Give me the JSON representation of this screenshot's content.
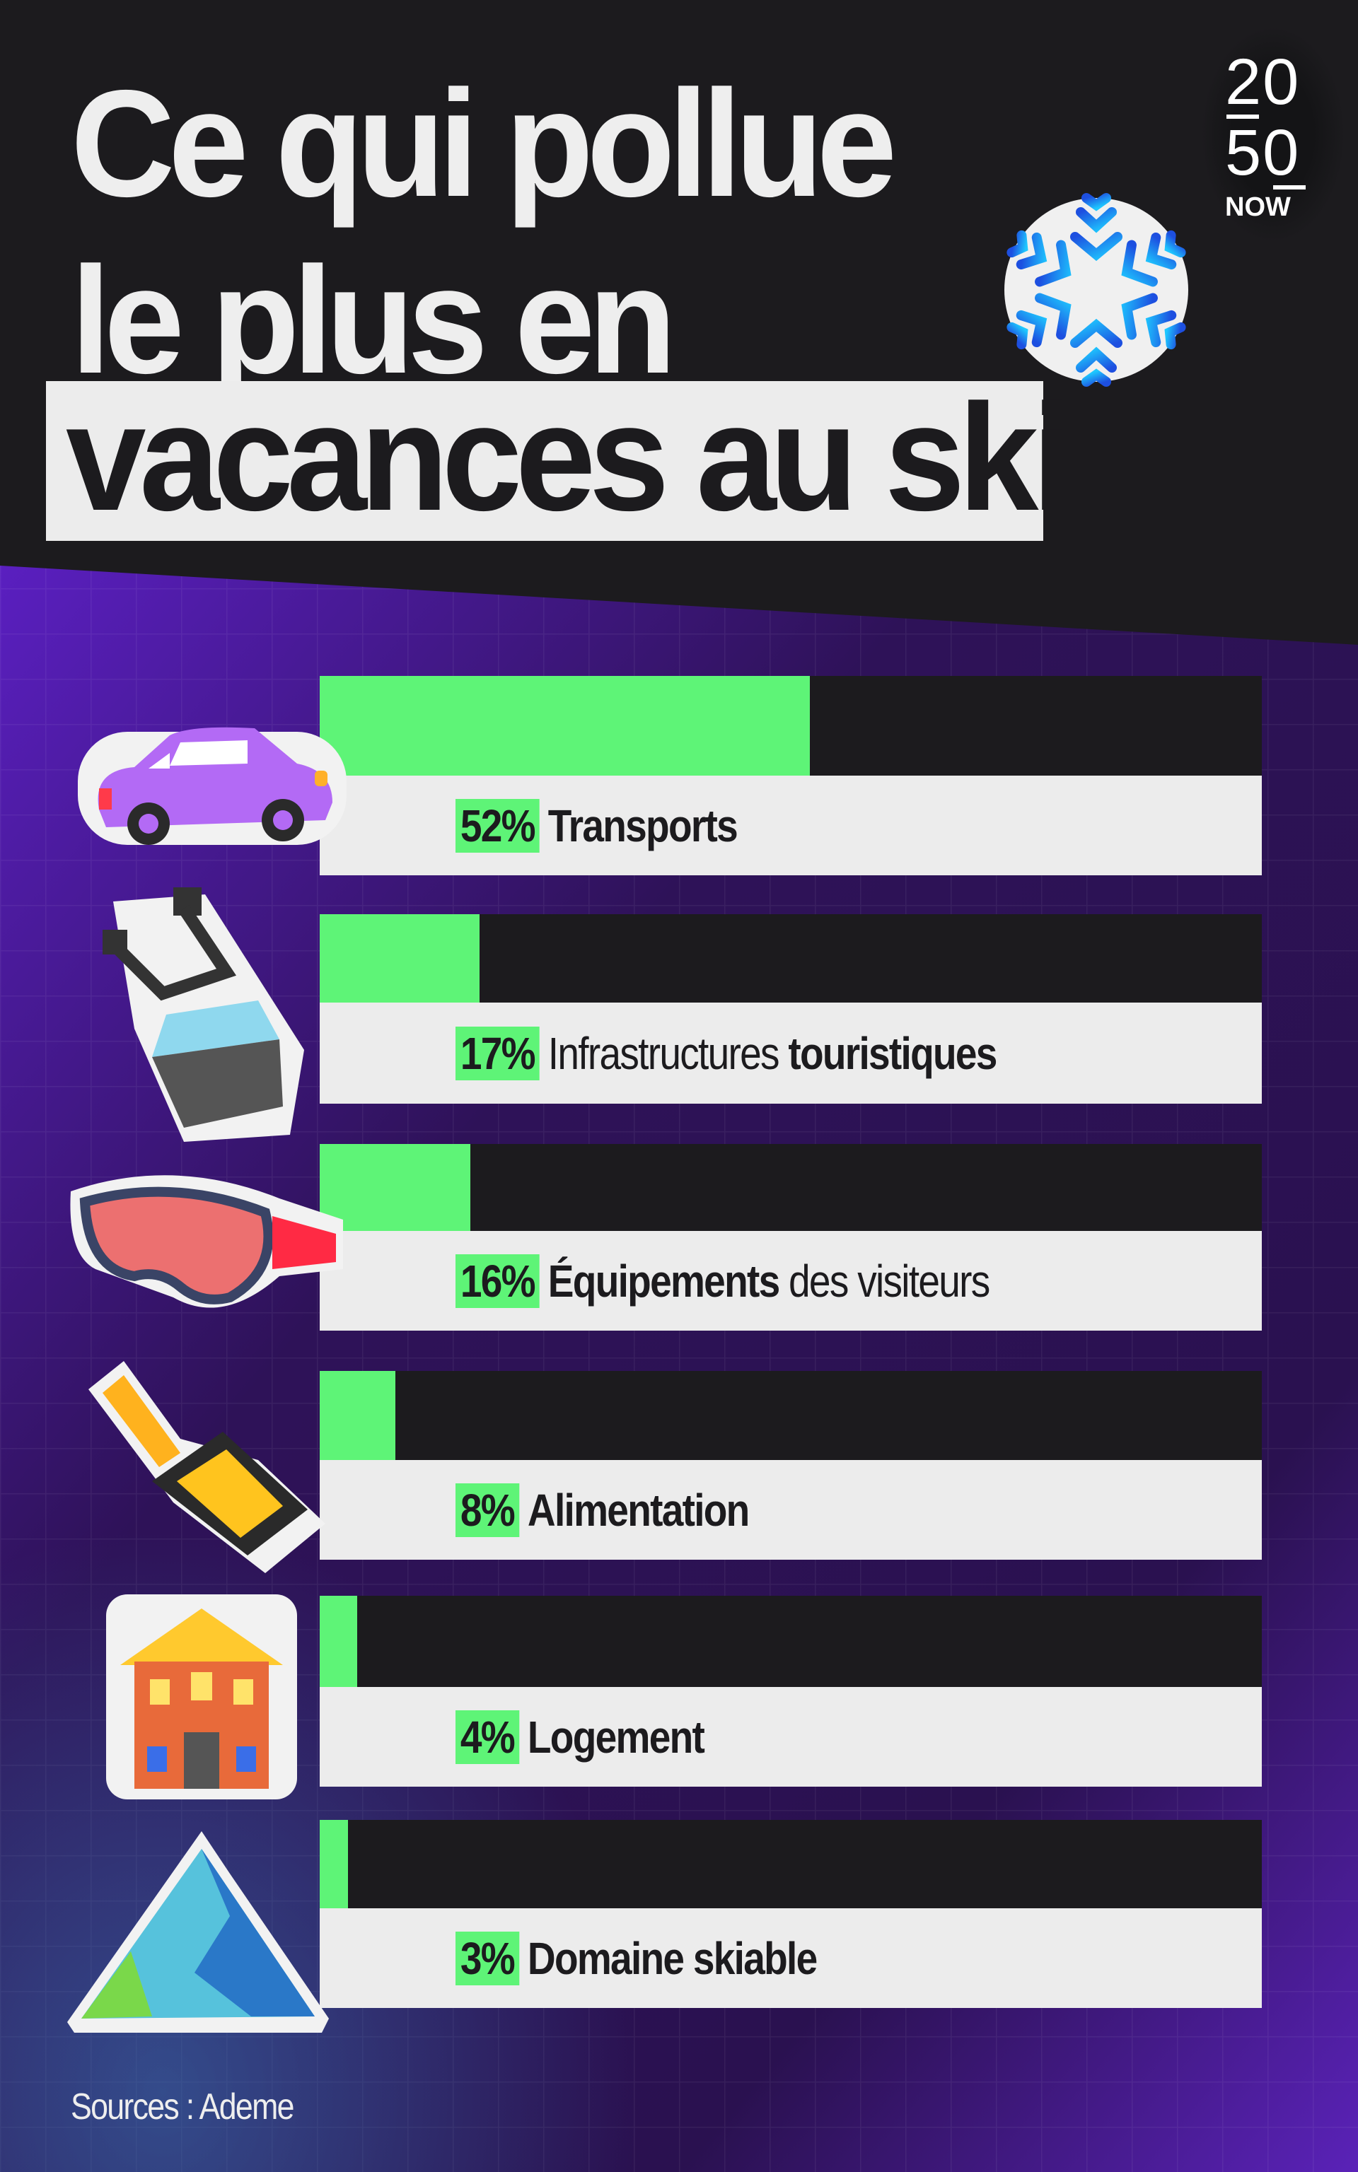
{
  "title": {
    "line1": "Ce qui pollue",
    "line2": "le plus en",
    "line3": "vacances au ski"
  },
  "logo": {
    "top": "20",
    "bottom": "50",
    "word": "NOW"
  },
  "colors": {
    "bar_fill": "#5ef477",
    "bar_track": "#1c1b1e",
    "label_bg": "#ececec",
    "background_top": "#1c1b1e",
    "background_bottom": "#3a1670"
  },
  "chart_data": {
    "type": "bar",
    "orientation": "horizontal",
    "xlim": [
      0,
      100
    ],
    "unit": "%",
    "categories": [
      "Transports",
      "Infrastructures touristiques",
      "Équipements des visiteurs",
      "Alimentation",
      "Logement",
      "Domaine skiable"
    ],
    "values": [
      52,
      17,
      16,
      8,
      4,
      3
    ],
    "items": [
      {
        "pct": "52%",
        "icon": "car-icon",
        "parts": [
          {
            "text": "Transports",
            "bold": true
          }
        ]
      },
      {
        "pct": "17%",
        "icon": "cable-car-icon",
        "parts": [
          {
            "text": "Infrastructures ",
            "bold": false
          },
          {
            "text": "touristiques",
            "bold": true
          }
        ]
      },
      {
        "pct": "16%",
        "icon": "ski-goggles-icon",
        "parts": [
          {
            "text": "Équipements ",
            "bold": true
          },
          {
            "text": "des visiteurs",
            "bold": false
          }
        ]
      },
      {
        "pct": "8%",
        "icon": "raclette-pan-icon",
        "parts": [
          {
            "text": "Alimentation",
            "bold": true
          }
        ]
      },
      {
        "pct": "4%",
        "icon": "chalet-icon",
        "parts": [
          {
            "text": "Logement",
            "bold": true
          }
        ]
      },
      {
        "pct": "3%",
        "icon": "mountain-icon",
        "parts": [
          {
            "text": "Domaine skiable",
            "bold": true
          }
        ]
      }
    ]
  },
  "decor": {
    "snowflake": "snowflake-icon"
  },
  "footer": {
    "sources": "Sources : Ademe"
  }
}
